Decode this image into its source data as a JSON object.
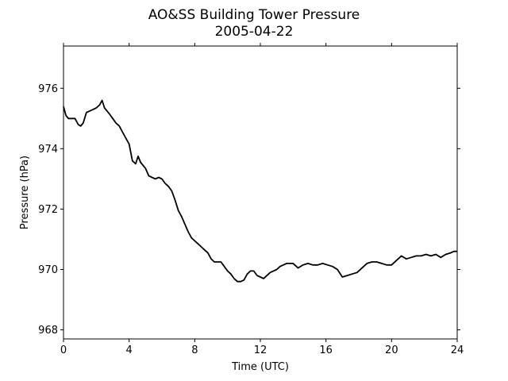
{
  "chart_data": {
    "type": "line",
    "title": "AO&SS Building Tower Pressure",
    "subtitle": "2005-04-22",
    "xlabel": "Time (UTC)",
    "ylabel": "Pressure (hPa)",
    "xlim": [
      0,
      24
    ],
    "ylim": [
      967.7,
      977.4
    ],
    "x_ticks": [
      0,
      4,
      8,
      12,
      16,
      20,
      24
    ],
    "y_ticks": [
      968,
      970,
      972,
      974,
      976
    ],
    "grid": false,
    "line_color": "#000000",
    "series": [
      {
        "x": [
          0,
          0.15,
          0.3,
          0.5,
          0.7,
          0.9,
          1.05,
          1.2,
          1.4,
          1.6,
          1.8,
          2.0,
          2.2,
          2.35,
          2.5,
          2.65,
          2.8,
          3.0,
          3.2,
          3.4,
          3.6,
          3.8,
          4.0,
          4.2,
          4.4,
          4.55,
          4.7,
          4.85,
          5.0,
          5.2,
          5.4,
          5.6,
          5.8,
          6.0,
          6.2,
          6.4,
          6.6,
          6.8,
          7.0,
          7.2,
          7.4,
          7.6,
          7.8,
          8.0,
          8.2,
          8.4,
          8.6,
          8.8,
          9.0,
          9.2,
          9.4,
          9.6,
          9.8,
          10.0,
          10.2,
          10.4,
          10.6,
          10.8,
          11.0,
          11.2,
          11.4,
          11.6,
          11.8,
          12.0,
          12.2,
          12.4,
          12.6,
          12.8,
          13.0,
          13.2,
          13.4,
          13.6,
          13.8,
          14.0,
          14.3,
          14.6,
          14.9,
          15.2,
          15.5,
          15.8,
          16.1,
          16.4,
          16.7,
          17.0,
          17.3,
          17.6,
          17.9,
          18.2,
          18.5,
          18.8,
          19.1,
          19.4,
          19.7,
          20.0,
          20.3,
          20.6,
          20.9,
          21.2,
          21.5,
          21.8,
          22.1,
          22.4,
          22.7,
          23.0,
          23.3,
          23.6,
          23.8,
          24.0
        ],
        "y": [
          975.4,
          975.1,
          975.0,
          975.0,
          975.0,
          974.8,
          974.75,
          974.85,
          975.2,
          975.25,
          975.3,
          975.35,
          975.45,
          975.6,
          975.35,
          975.25,
          975.15,
          975.0,
          974.85,
          974.75,
          974.55,
          974.35,
          974.15,
          973.6,
          973.5,
          973.75,
          973.55,
          973.45,
          973.35,
          973.1,
          973.05,
          973.0,
          973.05,
          973.0,
          972.85,
          972.75,
          972.6,
          972.3,
          971.95,
          971.75,
          971.5,
          971.25,
          971.05,
          970.95,
          970.85,
          970.75,
          970.65,
          970.55,
          970.35,
          970.25,
          970.25,
          970.25,
          970.1,
          969.95,
          969.85,
          969.7,
          969.6,
          969.6,
          969.65,
          969.85,
          969.95,
          969.95,
          969.8,
          969.75,
          969.7,
          969.8,
          969.9,
          969.95,
          970.0,
          970.1,
          970.15,
          970.2,
          970.2,
          970.2,
          970.05,
          970.15,
          970.2,
          970.15,
          970.15,
          970.2,
          970.15,
          970.1,
          970.0,
          969.75,
          969.8,
          969.85,
          969.9,
          970.05,
          970.2,
          970.25,
          970.25,
          970.2,
          970.15,
          970.15,
          970.3,
          970.45,
          970.35,
          970.4,
          970.45,
          970.45,
          970.5,
          970.45,
          970.5,
          970.4,
          970.5,
          970.55,
          970.6,
          970.6
        ]
      }
    ]
  }
}
